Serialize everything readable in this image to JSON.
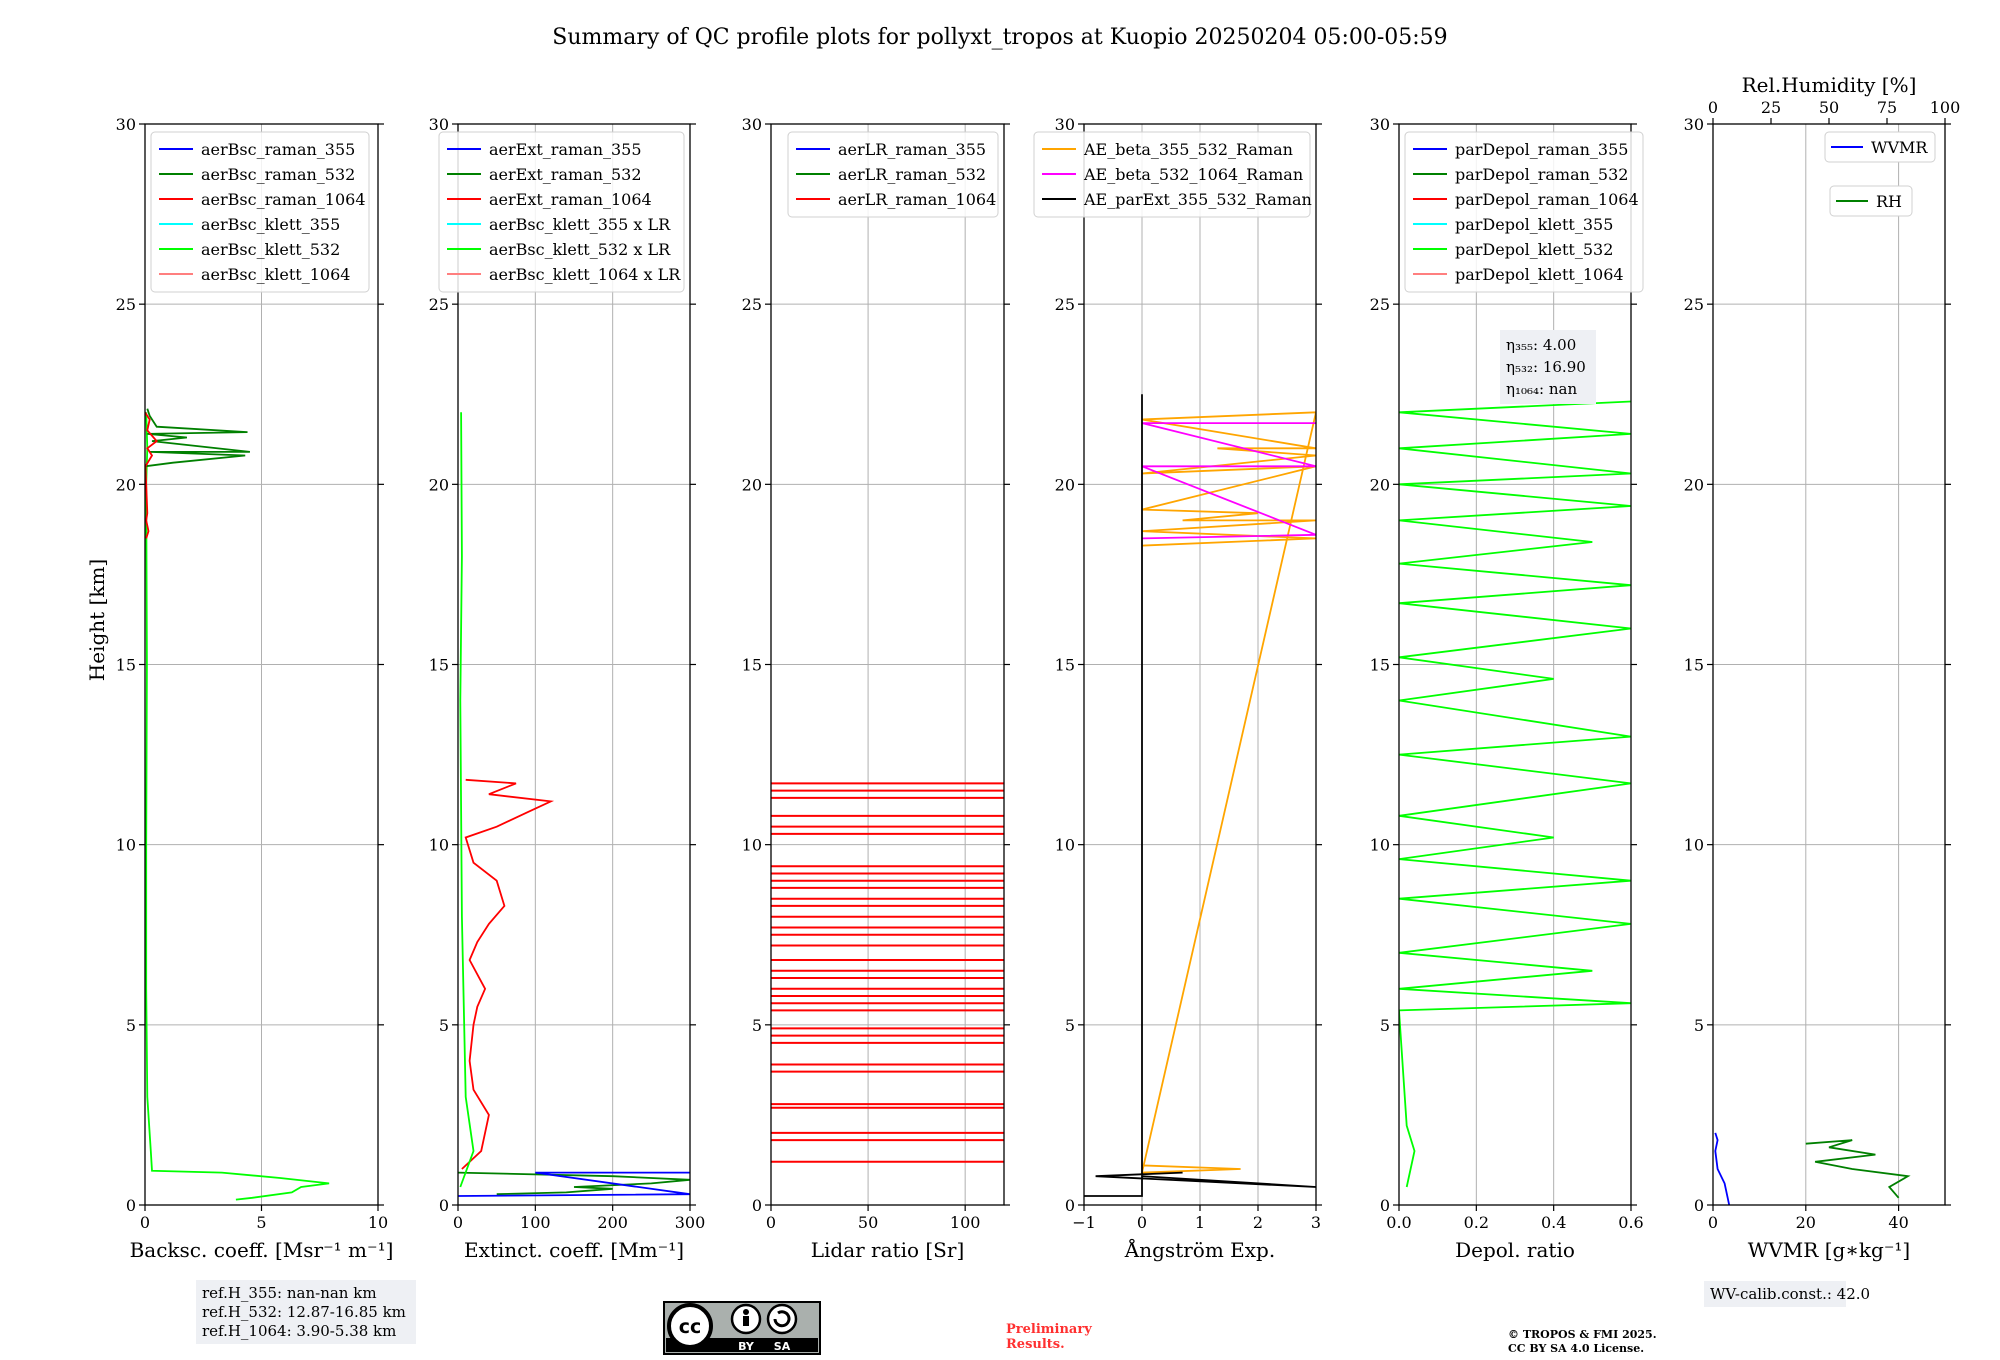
{
  "title": "Summary of QC profile plots for pollyxt_tropos at Kuopio 20250204 05:00-05:59",
  "ylabel": "Height [km]",
  "colors": {
    "blue": "#0000ff",
    "green": "#008000",
    "red": "#ff0000",
    "cyan": "#00ffff",
    "lime": "#00ff00",
    "salmon": "#ff7f7f",
    "orange": "#ffa500",
    "magenta": "#ff00ff",
    "black": "#000000"
  },
  "chart_data": [
    {
      "type": "line",
      "xlabel": "Backsc. coeff. [Msr⁻¹ m⁻¹]",
      "xlim": [
        0,
        10
      ],
      "ylim": [
        0,
        30
      ],
      "xticks": [
        "0",
        "5",
        "10"
      ],
      "yticks": [
        "0",
        "5",
        "10",
        "15",
        "20",
        "25",
        "30"
      ],
      "legend_position": "top-left",
      "legend": [
        {
          "name": "aerBsc_raman_355",
          "color": "#0000ff"
        },
        {
          "name": "aerBsc_raman_532",
          "color": "#008000"
        },
        {
          "name": "aerBsc_raman_1064",
          "color": "#ff0000"
        },
        {
          "name": "aerBsc_klett_355",
          "color": "#00ffff"
        },
        {
          "name": "aerBsc_klett_532",
          "color": "#00ff00"
        },
        {
          "name": "aerBsc_klett_1064",
          "color": "#ff7f7f"
        }
      ],
      "series": [
        {
          "name": "aerBsc_klett_532",
          "color": "#00ff00",
          "points": [
            [
              3.9,
              0.15
            ],
            [
              4.6,
              0.2
            ],
            [
              6.3,
              0.35
            ],
            [
              6.7,
              0.5
            ],
            [
              7.9,
              0.6
            ],
            [
              5.8,
              0.75
            ],
            [
              3.3,
              0.9
            ],
            [
              0.3,
              0.95
            ],
            [
              0.25,
              1.5
            ],
            [
              0.1,
              3
            ],
            [
              0.05,
              6
            ],
            [
              0.05,
              10
            ],
            [
              0.08,
              15
            ],
            [
              0.05,
              20
            ],
            [
              0.1,
              21
            ],
            [
              0.05,
              22
            ]
          ]
        },
        {
          "name": "aerBsc_raman_532",
          "color": "#008000",
          "points": [
            [
              0.0,
              20.5
            ],
            [
              1.2,
              20.6
            ],
            [
              4.3,
              20.8
            ],
            [
              0.2,
              20.9
            ],
            [
              4.5,
              20.9
            ],
            [
              0.3,
              21.2
            ],
            [
              1.8,
              21.3
            ],
            [
              0.1,
              21.4
            ],
            [
              4.4,
              21.45
            ],
            [
              0.5,
              21.6
            ],
            [
              0.2,
              21.9
            ],
            [
              0.1,
              22.1
            ]
          ]
        },
        {
          "name": "aerBsc_raman_1064",
          "color": "#ff0000",
          "points": [
            [
              0.05,
              18.5
            ],
            [
              0.15,
              18.7
            ],
            [
              0.05,
              19.0
            ],
            [
              0.1,
              19.2
            ],
            [
              0.02,
              20.5
            ],
            [
              0.3,
              20.8
            ],
            [
              0.1,
              21.0
            ],
            [
              0.5,
              21.2
            ],
            [
              0.1,
              21.5
            ],
            [
              0.2,
              21.8
            ],
            [
              0.0,
              22.0
            ]
          ]
        }
      ]
    },
    {
      "type": "line",
      "xlabel": "Extinct. coeff. [Mm⁻¹]",
      "xlim": [
        0,
        300
      ],
      "ylim": [
        0,
        30
      ],
      "xticks": [
        "0",
        "100",
        "200",
        "300"
      ],
      "yticks": [
        "0",
        "5",
        "10",
        "15",
        "20",
        "25",
        "30"
      ],
      "legend_position": "top-right",
      "legend": [
        {
          "name": "aerExt_raman_355",
          "color": "#0000ff"
        },
        {
          "name": "aerExt_raman_532",
          "color": "#008000"
        },
        {
          "name": "aerExt_raman_1064",
          "color": "#ff0000"
        },
        {
          "name": "aerBsc_klett_355 x LR",
          "color": "#00ffff"
        },
        {
          "name": "aerBsc_klett_532 x LR",
          "color": "#00ff00"
        },
        {
          "name": "aerBsc_klett_1064 x LR",
          "color": "#ff7f7f"
        }
      ],
      "series": [
        {
          "name": "aerExt_raman_1064",
          "color": "#ff0000",
          "points": [
            [
              5,
              1.0
            ],
            [
              30,
              1.5
            ],
            [
              40,
              2.5
            ],
            [
              20,
              3.2
            ],
            [
              15,
              4.0
            ],
            [
              20,
              5.0
            ],
            [
              25,
              5.5
            ],
            [
              35,
              6.0
            ],
            [
              15,
              6.8
            ],
            [
              25,
              7.3
            ],
            [
              40,
              7.8
            ],
            [
              60,
              8.3
            ],
            [
              50,
              9.0
            ],
            [
              20,
              9.5
            ],
            [
              10,
              10.2
            ],
            [
              50,
              10.5
            ],
            [
              90,
              10.9
            ],
            [
              120,
              11.2
            ],
            [
              40,
              11.4
            ],
            [
              75,
              11.7
            ],
            [
              10,
              11.8
            ]
          ]
        },
        {
          "name": "aerExt_raman_532",
          "color": "#008000",
          "points": [
            [
              50,
              0.3
            ],
            [
              140,
              0.35
            ],
            [
              200,
              0.45
            ],
            [
              150,
              0.5
            ],
            [
              250,
              0.6
            ],
            [
              300,
              0.7
            ],
            [
              200,
              0.8
            ],
            [
              0,
              0.9
            ]
          ]
        },
        {
          "name": "aerExt_raman_355",
          "color": "#0000ff",
          "points": [
            [
              0,
              0.25
            ],
            [
              300,
              0.3
            ],
            [
              100,
              0.9
            ],
            [
              300,
              0.9
            ]
          ]
        },
        {
          "name": "aerBsc_klett_532 x LR",
          "color": "#00ff00",
          "points": [
            [
              3,
              0.5
            ],
            [
              20,
              1.5
            ],
            [
              10,
              3
            ],
            [
              5,
              8
            ],
            [
              3,
              14
            ],
            [
              5,
              18
            ],
            [
              4,
              22
            ]
          ]
        }
      ]
    },
    {
      "type": "line",
      "xlabel": "Lidar ratio [Sr]",
      "xlim": [
        0,
        120
      ],
      "ylim": [
        0,
        30
      ],
      "xticks": [
        "0",
        "50",
        "100"
      ],
      "yticks": [
        "0",
        "5",
        "10",
        "15",
        "20",
        "25",
        "30"
      ],
      "legend_position": "top-right",
      "legend": [
        {
          "name": "aerLR_raman_355",
          "color": "#0000ff"
        },
        {
          "name": "aerLR_raman_532",
          "color": "#008000"
        },
        {
          "name": "aerLR_raman_1064",
          "color": "#ff0000"
        }
      ],
      "series": [
        {
          "name": "aerLR_raman_1064",
          "color": "#ff0000",
          "hlines": [
            1.2,
            1.8,
            2.0,
            2.7,
            2.8,
            3.7,
            3.9,
            4.5,
            4.7,
            4.9,
            5.4,
            5.6,
            5.8,
            6.0,
            6.3,
            6.5,
            6.8,
            7.2,
            7.5,
            7.7,
            8.0,
            8.3,
            8.5,
            8.8,
            9.0,
            9.2,
            9.4,
            10.3,
            10.5,
            10.8,
            11.3,
            11.5,
            11.7
          ]
        }
      ]
    },
    {
      "type": "line",
      "xlabel": "Ångström Exp.",
      "xlim": [
        -1,
        3
      ],
      "ylim": [
        0,
        30
      ],
      "xticks": [
        "−1",
        "0",
        "1",
        "2",
        "3"
      ],
      "yticks": [
        "0",
        "5",
        "10",
        "15",
        "20",
        "25",
        "30"
      ],
      "legend_position": "top-right",
      "legend": [
        {
          "name": "AE_beta_355_532_Raman",
          "color": "#ffa500"
        },
        {
          "name": "AE_beta_532_1064_Raman",
          "color": "#ff00ff"
        },
        {
          "name": "AE_parExt_355_532_Raman",
          "color": "#000000"
        }
      ],
      "series": [
        {
          "name": "AE_beta_355_532_Raman",
          "color": "#ffa500",
          "points": [
            [
              0,
              18.3
            ],
            [
              3,
              18.5
            ],
            [
              0,
              18.7
            ],
            [
              3,
              19.0
            ],
            [
              0.7,
              19.0
            ],
            [
              2,
              19.2
            ],
            [
              0,
              19.3
            ],
            [
              3,
              20.5
            ],
            [
              0,
              20.3
            ],
            [
              3,
              20.8
            ],
            [
              1.3,
              21.0
            ],
            [
              3,
              21.0
            ],
            [
              0,
              21.8
            ],
            [
              3,
              22.0
            ],
            [
              0,
              0.9
            ],
            [
              1.7,
              1.0
            ],
            [
              0,
              1.1
            ]
          ]
        },
        {
          "name": "AE_beta_532_1064_Raman",
          "color": "#ff00ff",
          "points": [
            [
              0,
              18.5
            ],
            [
              3,
              18.6
            ],
            [
              0,
              20.5
            ],
            [
              3,
              20.5
            ],
            [
              0,
              21.7
            ],
            [
              3,
              21.7
            ]
          ]
        },
        {
          "name": "AE_parExt_355_532_Raman",
          "color": "#000000",
          "points": [
            [
              -1,
              0.25
            ],
            [
              0,
              0.25
            ],
            [
              0,
              22.5
            ],
            [
              0,
              0.8
            ],
            [
              3,
              0.5
            ],
            [
              -0.8,
              0.8
            ],
            [
              0.7,
              0.9
            ]
          ]
        }
      ]
    },
    {
      "type": "line",
      "xlabel": "Depol. ratio",
      "xlim": [
        0,
        0.6
      ],
      "ylim": [
        0,
        30
      ],
      "xticks": [
        "0.0",
        "0.2",
        "0.4",
        "0.6"
      ],
      "yticks": [
        "0",
        "5",
        "10",
        "15",
        "20",
        "25",
        "30"
      ],
      "legend_position": "top-left",
      "annotation": [
        "η₃₅₅: 4.00",
        "η₅₃₂: 16.90",
        "η₁₀₆₄: nan"
      ],
      "legend": [
        {
          "name": "parDepol_raman_355",
          "color": "#0000ff"
        },
        {
          "name": "parDepol_raman_532",
          "color": "#008000"
        },
        {
          "name": "parDepol_raman_1064",
          "color": "#ff0000"
        },
        {
          "name": "parDepol_klett_355",
          "color": "#00ffff"
        },
        {
          "name": "parDepol_klett_532",
          "color": "#00ff00"
        },
        {
          "name": "parDepol_klett_1064",
          "color": "#ff7f7f"
        }
      ],
      "series": [
        {
          "name": "parDepol_klett_532",
          "color": "#00ff00",
          "points": [
            [
              0.02,
              0.5
            ],
            [
              0.04,
              1.5
            ],
            [
              0.02,
              2.2
            ],
            [
              0.0,
              5.4
            ],
            [
              0.6,
              5.6
            ],
            [
              0.0,
              6.0
            ],
            [
              0.5,
              6.5
            ],
            [
              0.0,
              7.0
            ],
            [
              0.6,
              7.8
            ],
            [
              0.0,
              8.5
            ],
            [
              0.6,
              9.0
            ],
            [
              0.0,
              9.6
            ],
            [
              0.4,
              10.2
            ],
            [
              0.0,
              10.8
            ],
            [
              0.6,
              11.7
            ],
            [
              0.0,
              12.5
            ],
            [
              0.6,
              13.0
            ],
            [
              0.0,
              14.0
            ],
            [
              0.4,
              14.6
            ],
            [
              0.0,
              15.2
            ],
            [
              0.6,
              16.0
            ],
            [
              0.0,
              16.7
            ],
            [
              0.6,
              17.2
            ],
            [
              0.0,
              17.8
            ],
            [
              0.5,
              18.4
            ],
            [
              0.0,
              19.0
            ],
            [
              0.6,
              19.4
            ],
            [
              0.0,
              20.0
            ],
            [
              0.6,
              20.3
            ],
            [
              0.0,
              21.0
            ],
            [
              0.6,
              21.4
            ],
            [
              0.0,
              22.0
            ],
            [
              0.6,
              22.3
            ]
          ]
        }
      ]
    },
    {
      "type": "line",
      "xlabel": "WVMR [g∗kg⁻¹]",
      "top_xlabel": "Rel.Humidity [%]",
      "xlim": [
        0,
        50
      ],
      "ylim": [
        0,
        30
      ],
      "top_xlim": [
        0,
        100
      ],
      "xticks": [
        "0",
        "20",
        "40"
      ],
      "top_xticks": [
        "0",
        "25",
        "50",
        "75",
        "100"
      ],
      "yticks": [
        "0",
        "5",
        "10",
        "15",
        "20",
        "25",
        "30"
      ],
      "legend_position": "top-right",
      "legend": [
        {
          "name": "WVMR",
          "color": "#0000ff"
        },
        {
          "name": "RH",
          "color": "#008000"
        }
      ],
      "series": [
        {
          "name": "WVMR",
          "color": "#0000ff",
          "points": [
            [
              3.5,
              0.0
            ],
            [
              3.0,
              0.3
            ],
            [
              2.5,
              0.6
            ],
            [
              1.0,
              1.0
            ],
            [
              0.5,
              1.5
            ],
            [
              1.0,
              1.8
            ],
            [
              0.5,
              2.0
            ]
          ]
        },
        {
          "name": "RH",
          "color": "#008000",
          "points": [
            [
              40,
              0.2
            ],
            [
              38,
              0.5
            ],
            [
              42,
              0.8
            ],
            [
              30,
              1.0
            ],
            [
              22,
              1.2
            ],
            [
              35,
              1.4
            ],
            [
              25,
              1.6
            ],
            [
              30,
              1.8
            ],
            [
              20,
              1.7
            ]
          ]
        }
      ]
    }
  ],
  "footer": {
    "refh": [
      "ref.H_355: nan-nan km",
      "ref.H_532: 12.87-16.85 km",
      "ref.H_1064: 3.90-5.38 km"
    ],
    "license_badge": [
      "BY",
      "SA"
    ],
    "preliminary": [
      "Preliminary",
      "Results."
    ],
    "copyright": [
      "© TROPOS & FMI 2025.",
      "CC BY SA 4.0 License."
    ],
    "wv_calib": "WV-calib.const.: 42.0"
  }
}
